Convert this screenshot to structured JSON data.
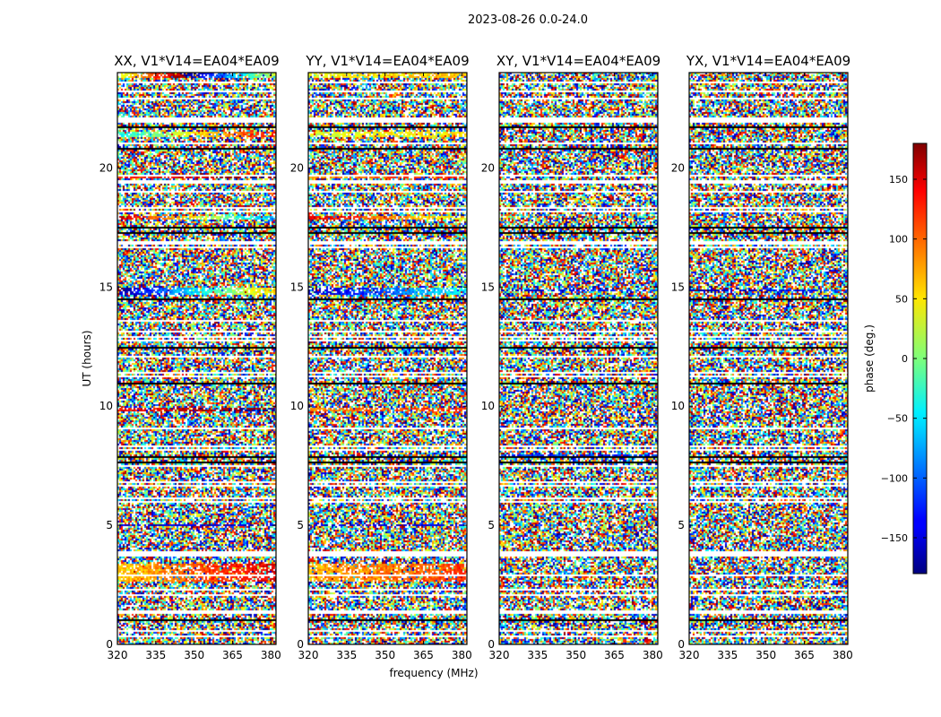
{
  "suptitle": "2023-08-26 0.0-24.0",
  "chart_data": {
    "type": "heatmap",
    "x_axis": {
      "label": "frequency (MHz)",
      "range": [
        320,
        382
      ],
      "ticks": [
        320,
        335,
        350,
        365,
        380
      ]
    },
    "y_axis": {
      "label": "UT (hours)",
      "range": [
        0,
        24
      ],
      "ticks": [
        0,
        5,
        10,
        15,
        20
      ]
    },
    "panels": [
      {
        "title": "XX, V1*V14=EA04*EA09"
      },
      {
        "title": "YY, V1*V14=EA04*EA09"
      },
      {
        "title": "XY, V1*V14=EA04*EA09"
      },
      {
        "title": "YX, V1*V14=EA04*EA09"
      }
    ],
    "colorbar": {
      "label": "phase (deg.)",
      "range": [
        -180,
        180
      ],
      "ticks": [
        -150,
        -100,
        -50,
        0,
        50,
        100,
        150
      ],
      "colormap": "jet"
    },
    "flagged_hours": [
      [
        0.95,
        1.02
      ],
      [
        7.6,
        7.67
      ],
      [
        7.85,
        7.92
      ],
      [
        10.9,
        10.95
      ],
      [
        12.4,
        12.47
      ],
      [
        14.45,
        14.52
      ],
      [
        17.2,
        17.3
      ],
      [
        17.45,
        17.55
      ],
      [
        20.8,
        20.85
      ],
      [
        21.65,
        21.75
      ]
    ],
    "blank_hours": [
      [
        0.3,
        0.37
      ],
      [
        1.3,
        1.37
      ],
      [
        2.25,
        2.32
      ],
      [
        3.7,
        3.9
      ],
      [
        6.1,
        6.17
      ],
      [
        8.3,
        8.37
      ],
      [
        9.0,
        9.07
      ],
      [
        11.2,
        11.27
      ],
      [
        13.1,
        13.17
      ],
      [
        16.8,
        16.95
      ],
      [
        19.3,
        19.45
      ],
      [
        21.0,
        21.1
      ],
      [
        21.9,
        22.1
      ],
      [
        23.2,
        23.27
      ]
    ],
    "coherent_bands": [
      {
        "panel": 0,
        "hours": [
          23.75,
          24.0
        ],
        "phase": 30,
        "slope": 6
      },
      {
        "panel": 0,
        "hours": [
          21.3,
          21.55
        ],
        "phase": -40,
        "slope": 3
      },
      {
        "panel": 0,
        "hours": [
          19.55,
          19.7
        ],
        "phase": 120,
        "slope": 1
      },
      {
        "panel": 0,
        "hours": [
          17.8,
          18.0
        ],
        "phase": 160,
        "slope": -4
      },
      {
        "panel": 0,
        "hours": [
          14.7,
          14.95
        ],
        "phase": -170,
        "slope": 4
      },
      {
        "panel": 0,
        "hours": [
          9.75,
          9.9
        ],
        "phase": 130,
        "slope": 1
      },
      {
        "panel": 0,
        "hours": [
          4.95,
          5.05
        ],
        "phase": -150,
        "slope": 0
      },
      {
        "panel": 0,
        "hours": [
          2.6,
          3.4
        ],
        "phase": 60,
        "slope": 1.5
      },
      {
        "panel": 1,
        "hours": [
          23.75,
          24.0
        ],
        "phase": 40,
        "slope": 0.5
      },
      {
        "panel": 1,
        "hours": [
          21.3,
          21.55
        ],
        "phase": 30,
        "slope": 0.5
      },
      {
        "panel": 1,
        "hours": [
          19.55,
          19.7
        ],
        "phase": 90,
        "slope": 0.5
      },
      {
        "panel": 1,
        "hours": [
          17.8,
          18.0
        ],
        "phase": 150,
        "slope": -2
      },
      {
        "panel": 1,
        "hours": [
          14.7,
          14.95
        ],
        "phase": -160,
        "slope": 2
      },
      {
        "panel": 1,
        "hours": [
          9.75,
          9.9
        ],
        "phase": 90,
        "slope": 0.5
      },
      {
        "panel": 1,
        "hours": [
          4.95,
          5.05
        ],
        "phase": -150,
        "slope": 0
      },
      {
        "panel": 1,
        "hours": [
          2.6,
          3.4
        ],
        "phase": 70,
        "slope": 0.8
      },
      {
        "panel": 2,
        "hours": [
          7.9,
          8.0
        ],
        "phase": -120,
        "slope": 0
      },
      {
        "panel": 2,
        "hours": [
          14.8,
          14.9
        ],
        "phase": -170,
        "slope": 1
      },
      {
        "panel": 3,
        "hours": [
          14.8,
          14.9
        ],
        "phase": -170,
        "slope": 1
      }
    ]
  }
}
